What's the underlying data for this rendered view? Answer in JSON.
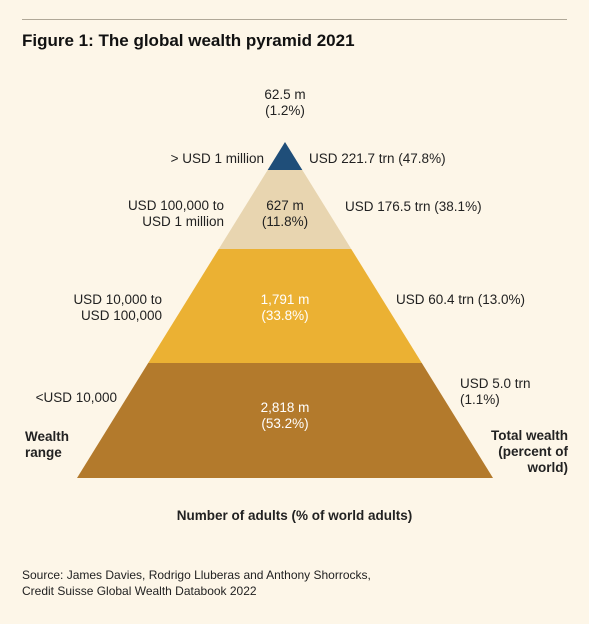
{
  "title": "Figure 1: The global wealth pyramid 2021",
  "left_axis_label": [
    "Wealth",
    "range"
  ],
  "right_axis_label": [
    "Total wealth",
    "(percent of",
    "world)"
  ],
  "bottom_axis_label": "Number of adults (% of world adults)",
  "source": [
    "Source: James Davies, Rodrigo Lluberas and Anthony Shorrocks,",
    "Credit Suisse Global Wealth Databook 2022"
  ],
  "colors": {
    "background": "#fdf6e8",
    "tier_1": "#1f4e79",
    "tier_2": "#e8d5b0",
    "tier_3": "#ebb133",
    "tier_4": "#b37a2c"
  },
  "chart_data": {
    "type": "pyramid",
    "title": "Figure 1: The global wealth pyramid 2021",
    "tiers": [
      {
        "wealth_range": [
          "> USD 1 million"
        ],
        "adults_millions": 62.5,
        "adults_label": [
          "62.5 m",
          "(1.2%)"
        ],
        "adults_percent": 1.2,
        "total_wealth_trn": 221.7,
        "total_wealth_percent": 47.8,
        "wealth_label": [
          "USD 221.7 trn (47.8%)"
        ]
      },
      {
        "wealth_range": [
          "USD 100,000 to",
          "USD 1 million"
        ],
        "adults_millions": 627,
        "adults_label": [
          "627 m",
          "(11.8%)"
        ],
        "adults_percent": 11.8,
        "total_wealth_trn": 176.5,
        "total_wealth_percent": 38.1,
        "wealth_label": [
          "USD 176.5 trn (38.1%)"
        ]
      },
      {
        "wealth_range": [
          "USD 10,000 to",
          "USD 100,000"
        ],
        "adults_millions": 1791,
        "adults_label": [
          "1,791 m",
          "(33.8%)"
        ],
        "adults_percent": 33.8,
        "total_wealth_trn": 60.4,
        "total_wealth_percent": 13.0,
        "wealth_label": [
          "USD 60.4 trn (13.0%)"
        ]
      },
      {
        "wealth_range": [
          "<USD 10,000"
        ],
        "adults_millions": 2818,
        "adults_label": [
          "2,818 m",
          "(53.2%)"
        ],
        "adults_percent": 53.2,
        "total_wealth_trn": 5.0,
        "total_wealth_percent": 1.1,
        "wealth_label": [
          "USD 5.0 trn",
          "(1.1%)"
        ]
      }
    ]
  }
}
